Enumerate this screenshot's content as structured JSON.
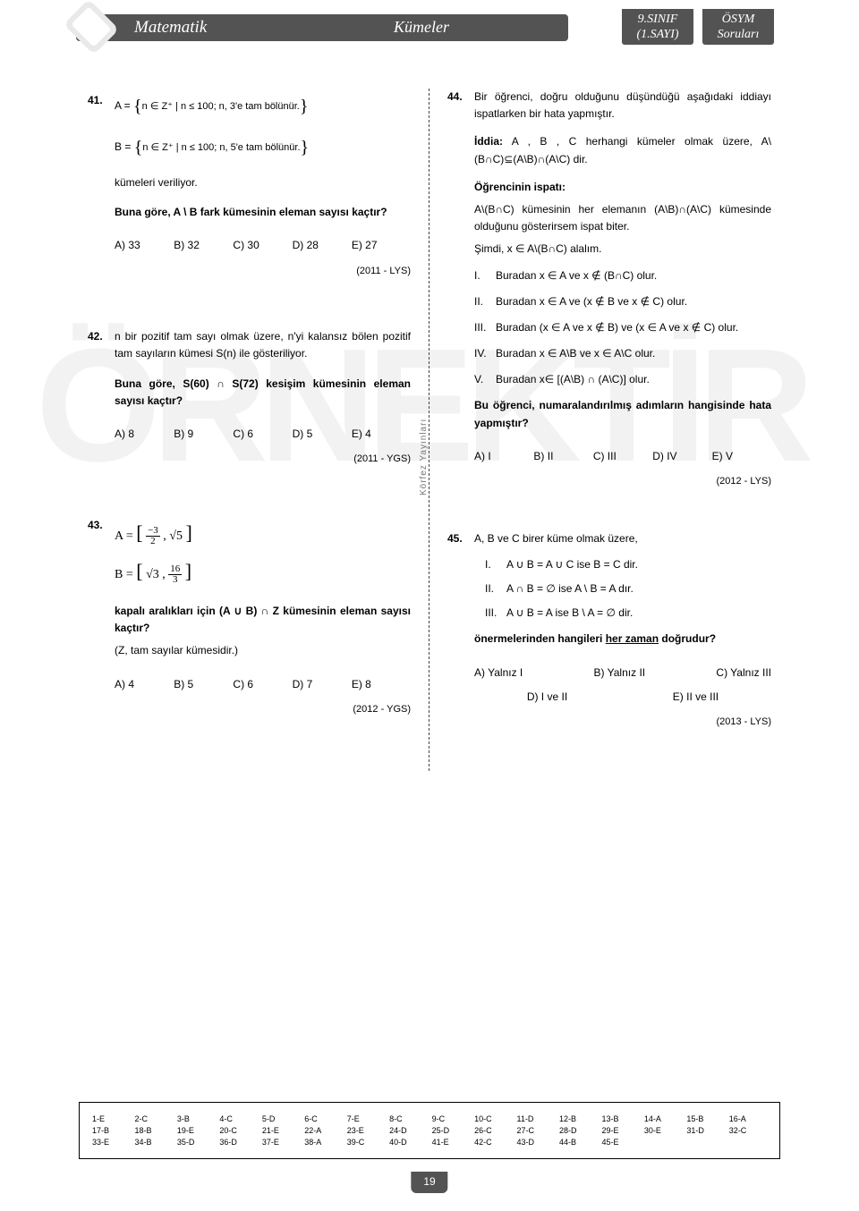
{
  "header": {
    "subject": "Matematik",
    "topic": "Kümeler",
    "box1_line1": "9.SINIF",
    "box1_line2": "(1.SAYI)",
    "box2_line1": "ÖSYM",
    "box2_line2": "Soruları"
  },
  "watermark": "ÖRNEKTİR",
  "q41": {
    "num": "41.",
    "A_lhs": "A =",
    "A_set": "n ∈ Z⁺ | n ≤ 100;  n, 3'e tam bölünür.",
    "B_lhs": "B =",
    "B_set": "n ∈ Z⁺ | n ≤ 100;  n, 5'e tam bölünür.",
    "line1": "kümeleri veriliyor.",
    "line2": "Buna göre, A \\ B fark kümesinin eleman sayısı kaçtır?",
    "a": "A) 33",
    "b": "B) 32",
    "c": "C) 30",
    "d": "D) 28",
    "e": "E) 27",
    "src": "(2011 - LYS)"
  },
  "q42": {
    "num": "42.",
    "line1": "n bir pozitif tam sayı olmak üzere, n'yi kalansız bölen pozitif tam sayıların kümesi S(n) ile gösteriliyor.",
    "line2": "Buna göre,  S(60) ∩ S(72)  kesişim kümesinin eleman sayısı kaçtır?",
    "a": "A) 8",
    "b": "B) 9",
    "c": "C) 6",
    "d": "D) 5",
    "e": "E) 4",
    "src": "(2011 - YGS)"
  },
  "q43": {
    "num": "43.",
    "A_lhs": "A =",
    "A_lb_num": "−3",
    "A_lb_den": "2",
    "A_ub": "√5",
    "B_lhs": "B =",
    "B_lb": "√3",
    "B_ub_num": "16",
    "B_ub_den": "3",
    "line1": "kapalı aralıkları için (A ∪ B) ∩ Z kümesinin eleman sayısı kaçtır?",
    "line2": "(Z, tam sayılar kümesidir.)",
    "a": "A) 4",
    "b": "B) 5",
    "c": "C) 6",
    "d": "D) 7",
    "e": "E) 8",
    "src": "(2012 - YGS)"
  },
  "q44": {
    "num": "44.",
    "p1": "Bir öğrenci, doğru olduğunu düşündüğü aşağıdaki iddiayı ispatlarken bir hata yapmıştır.",
    "p2a": "İddia:",
    "p2b": " A , B , C herhangi kümeler olmak üzere, A\\(B∩C)⊆(A\\B)∩(A\\C) dir.",
    "p3": "Öğrencinin ispatı:",
    "p4": "A\\(B∩C) kümesinin her elemanın (A\\B)∩(A\\C) kümesinde olduğunu gösterirsem ispat biter.",
    "p5": "Şimdi, x ∈ A\\(B∩C) alalım.",
    "s1": "Buradan x ∈ A ve x ∉ (B∩C) olur.",
    "s2": "Buradan x ∈ A ve (x ∉ B ve x ∉ C) olur.",
    "s3": "Buradan (x ∈ A ve x ∉ B) ve (x ∈ A ve x ∉ C)  olur.",
    "s4": "Buradan x ∈ A\\B  ve x ∈ A\\C olur.",
    "s5": "Buradan x∈ [(A\\B) ∩ (A\\C)] olur.",
    "p6": "Bu öğrenci, numaralandırılmış adımların hangisinde hata yapmıştır?",
    "a": "A) I",
    "b": "B) II",
    "c": "C) III",
    "d": "D) IV",
    "e": "E) V",
    "src": "(2012 - LYS)"
  },
  "q45": {
    "num": "45.",
    "p1": "A, B ve C birer küme olmak üzere,",
    "s1": "A ∪ B = A ∪ C  ise  B = C  dir.",
    "s2": "A ∩ B = ∅  ise  A \\ B = A  dır.",
    "s3": "A ∪ B = A  ise  B \\ A = ∅  dir.",
    "p2a": "önermelerinden hangileri ",
    "p2b": "her zaman",
    "p2c": " doğrudur?",
    "a": "A) Yalnız I",
    "b": "B) Yalnız II",
    "c": "C) Yalnız III",
    "d": "D) I ve II",
    "e": "E) II ve III",
    "src": "(2013 - LYS)"
  },
  "spine": "Körfez Yayınları",
  "answers": {
    "r1": [
      "1-E",
      "2-C",
      "3-B",
      "4-C",
      "5-D",
      "6-C",
      "7-E",
      "8-C",
      "9-C",
      "10-C",
      "11-D",
      "12-B",
      "13-B",
      "14-A",
      "15-B",
      "16-A"
    ],
    "r2": [
      "17-B",
      "18-B",
      "19-E",
      "20-C",
      "21-E",
      "22-A",
      "23-E",
      "24-D",
      "25-D",
      "26-C",
      "27-C",
      "28-D",
      "29-E",
      "30-E",
      "31-D",
      "32-C"
    ],
    "r3": [
      "33-E",
      "34-B",
      "35-D",
      "36-D",
      "37-E",
      "38-A",
      "39-C",
      "40-D",
      "41-E",
      "42-C",
      "43-D",
      "44-B",
      "45-E",
      "",
      "",
      ""
    ]
  },
  "pagenum": "19"
}
